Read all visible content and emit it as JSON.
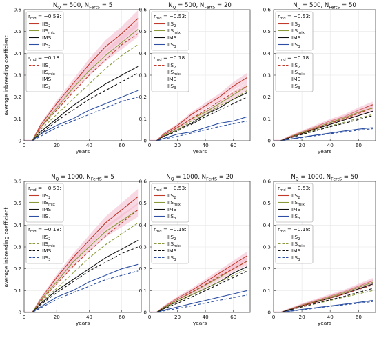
{
  "figure": {
    "ylabel": "average inbreeding coefficient"
  },
  "chart_data": [
    {
      "type": "line",
      "title": "N_Q = 500,   N_FertS = 5",
      "xlabel": "years",
      "xlim": [
        0,
        72
      ],
      "ylim": [
        0,
        0.6
      ],
      "xticks": [
        0,
        20,
        40,
        60
      ],
      "yticks": [
        0,
        0.1,
        0.2,
        0.3,
        0.4,
        0.5,
        0.6
      ],
      "grid": true,
      "legends": [
        {
          "header": "r_md = −0.53:",
          "entries": [
            "IIS_2",
            "IIS_mix",
            "IMS",
            "IIS_3"
          ],
          "style": "solid",
          "placement": "upper-left"
        },
        {
          "header": "r_md = −0.18:",
          "entries": [
            "IIS_2",
            "IIS_mix",
            "IMS",
            "IIS_3"
          ],
          "style": "dashed",
          "placement": "middle-left"
        }
      ],
      "x": [
        0,
        5,
        10,
        20,
        30,
        40,
        50,
        60,
        70
      ],
      "series": [
        {
          "name": "IIS_2",
          "group": "r_md = −0.53",
          "values": [
            0,
            0,
            0.07,
            0.17,
            0.26,
            0.35,
            0.43,
            0.49,
            0.56
          ]
        },
        {
          "name": "IIS_mix",
          "group": "r_md = −0.53",
          "values": [
            0,
            0,
            0.06,
            0.15,
            0.24,
            0.32,
            0.39,
            0.45,
            0.51
          ]
        },
        {
          "name": "IMS",
          "group": "r_md = −0.53",
          "values": [
            0,
            0,
            0.04,
            0.1,
            0.16,
            0.21,
            0.26,
            0.3,
            0.34
          ]
        },
        {
          "name": "IIS_3",
          "group": "r_md = −0.53",
          "values": [
            0,
            0,
            0.03,
            0.07,
            0.1,
            0.14,
            0.17,
            0.2,
            0.23
          ]
        },
        {
          "name": "IIS_2",
          "group": "r_md = −0.18",
          "values": [
            0,
            0,
            0.06,
            0.14,
            0.22,
            0.3,
            0.37,
            0.44,
            0.49
          ]
        },
        {
          "name": "IIS_mix",
          "group": "r_md = −0.18",
          "values": [
            0,
            0,
            0.05,
            0.12,
            0.19,
            0.26,
            0.33,
            0.39,
            0.44
          ]
        },
        {
          "name": "IMS",
          "group": "r_md = −0.18",
          "values": [
            0,
            0,
            0.03,
            0.09,
            0.14,
            0.19,
            0.23,
            0.27,
            0.31
          ]
        },
        {
          "name": "IIS_3",
          "group": "r_md = −0.18",
          "values": [
            0,
            0,
            0.02,
            0.06,
            0.09,
            0.12,
            0.15,
            0.18,
            0.2
          ]
        }
      ]
    },
    {
      "type": "line",
      "title": "N_Q = 500,   N_FertS = 20",
      "xlabel": "years",
      "xlim": [
        0,
        72
      ],
      "ylim": [
        0,
        0.6
      ],
      "xticks": [
        0,
        20,
        40,
        60
      ],
      "yticks": [
        0,
        0.1,
        0.2,
        0.3,
        0.4,
        0.5,
        0.6
      ],
      "grid": true,
      "legends": [
        {
          "header": "r_md = −0.53:",
          "entries": [
            "IIS_2",
            "IIS_mix",
            "IMS",
            "IIS_3"
          ],
          "style": "solid",
          "placement": "upper-left"
        },
        {
          "header": "r_md = −0.18:",
          "entries": [
            "IIS_2",
            "IIS_mix",
            "IMS",
            "IIS_3"
          ],
          "style": "dashed",
          "placement": "middle-left"
        }
      ],
      "x": [
        0,
        5,
        10,
        20,
        30,
        40,
        50,
        60,
        70
      ],
      "series": [
        {
          "name": "IIS_2",
          "group": "r_md = −0.53",
          "values": [
            0,
            0,
            0.03,
            0.07,
            0.12,
            0.16,
            0.2,
            0.25,
            0.29
          ]
        },
        {
          "name": "IIS_mix",
          "group": "r_md = −0.53",
          "values": [
            0,
            0,
            0.025,
            0.06,
            0.1,
            0.13,
            0.17,
            0.21,
            0.25
          ]
        },
        {
          "name": "IMS",
          "group": "r_md = −0.53",
          "values": [
            0,
            0,
            0.02,
            0.05,
            0.08,
            0.12,
            0.15,
            0.19,
            0.22
          ]
        },
        {
          "name": "IIS_3",
          "group": "r_md = −0.53",
          "values": [
            0,
            0,
            0.01,
            0.03,
            0.04,
            0.06,
            0.08,
            0.09,
            0.11
          ]
        },
        {
          "name": "IIS_2",
          "group": "r_md = −0.18",
          "values": [
            0,
            0,
            0.025,
            0.06,
            0.1,
            0.14,
            0.18,
            0.22,
            0.25
          ]
        },
        {
          "name": "IIS_mix",
          "group": "r_md = −0.18",
          "values": [
            0,
            0,
            0.02,
            0.05,
            0.09,
            0.12,
            0.16,
            0.19,
            0.23
          ]
        },
        {
          "name": "IMS",
          "group": "r_md = −0.18",
          "values": [
            0,
            0,
            0.018,
            0.045,
            0.075,
            0.11,
            0.14,
            0.17,
            0.2
          ]
        },
        {
          "name": "IIS_3",
          "group": "r_md = −0.18",
          "values": [
            0,
            0,
            0.008,
            0.02,
            0.035,
            0.05,
            0.065,
            0.078,
            0.09
          ]
        }
      ]
    },
    {
      "type": "line",
      "title": "N_Q = 500,   N_FertS = 50",
      "xlabel": "years",
      "xlim": [
        0,
        72
      ],
      "ylim": [
        0,
        0.6
      ],
      "xticks": [
        0,
        20,
        40,
        60
      ],
      "yticks": [
        0,
        0.1,
        0.2,
        0.3,
        0.4,
        0.5,
        0.6
      ],
      "grid": true,
      "legends": [
        {
          "header": "r_md = −0.53:",
          "entries": [
            "IIS_2",
            "IIS_mix",
            "IMS",
            "IIS_3"
          ],
          "style": "solid",
          "placement": "upper-left"
        },
        {
          "header": "r_md = −0.18:",
          "entries": [
            "IIS_2",
            "IIS_mix",
            "IMS",
            "IIS_3"
          ],
          "style": "dashed",
          "placement": "middle-left"
        }
      ],
      "x": [
        0,
        5,
        10,
        20,
        30,
        40,
        50,
        60,
        70
      ],
      "series": [
        {
          "name": "IIS_2",
          "group": "r_md = −0.53",
          "values": [
            0,
            0,
            0.015,
            0.04,
            0.065,
            0.09,
            0.11,
            0.14,
            0.165
          ]
        },
        {
          "name": "IIS_mix",
          "group": "r_md = −0.53",
          "values": [
            0,
            0,
            0.014,
            0.037,
            0.06,
            0.083,
            0.105,
            0.13,
            0.15
          ]
        },
        {
          "name": "IMS",
          "group": "r_md = −0.53",
          "values": [
            0,
            0,
            0.012,
            0.033,
            0.055,
            0.075,
            0.095,
            0.115,
            0.135
          ]
        },
        {
          "name": "IIS_3",
          "group": "r_md = −0.53",
          "values": [
            0,
            0,
            0.006,
            0.016,
            0.026,
            0.035,
            0.045,
            0.053,
            0.06
          ]
        },
        {
          "name": "IIS_2",
          "group": "r_md = −0.18",
          "values": [
            0,
            0,
            0.013,
            0.035,
            0.058,
            0.08,
            0.1,
            0.125,
            0.15
          ]
        },
        {
          "name": "IIS_mix",
          "group": "r_md = −0.18",
          "values": [
            0,
            0,
            0.011,
            0.03,
            0.05,
            0.068,
            0.085,
            0.103,
            0.12
          ]
        },
        {
          "name": "IMS",
          "group": "r_md = −0.18",
          "values": [
            0,
            0,
            0.01,
            0.028,
            0.046,
            0.064,
            0.08,
            0.097,
            0.115
          ]
        },
        {
          "name": "IIS_3",
          "group": "r_md = −0.18",
          "values": [
            0,
            0,
            0.005,
            0.014,
            0.023,
            0.032,
            0.04,
            0.048,
            0.055
          ]
        }
      ]
    },
    {
      "type": "line",
      "title": "N_Q = 1000,   N_FertS = 5",
      "xlabel": "years",
      "xlim": [
        0,
        72
      ],
      "ylim": [
        0,
        0.6
      ],
      "xticks": [
        0,
        20,
        40,
        60
      ],
      "yticks": [
        0,
        0.1,
        0.2,
        0.3,
        0.4,
        0.5,
        0.6
      ],
      "grid": true,
      "legends": [
        {
          "header": "r_md = −0.53:",
          "entries": [
            "IIS_2",
            "IIS_mix",
            "IMS",
            "IIS_3"
          ],
          "style": "solid",
          "placement": "upper-left"
        },
        {
          "header": "r_md = −0.18:",
          "entries": [
            "IIS_2",
            "IIS_mix",
            "IMS",
            "IIS_3"
          ],
          "style": "dashed",
          "placement": "middle-left"
        }
      ],
      "x": [
        0,
        5,
        10,
        20,
        30,
        40,
        50,
        60,
        70
      ],
      "series": [
        {
          "name": "IIS_2",
          "group": "r_md = −0.53",
          "values": [
            0,
            0,
            0.06,
            0.16,
            0.25,
            0.33,
            0.41,
            0.47,
            0.53
          ]
        },
        {
          "name": "IIS_mix",
          "group": "r_md = −0.53",
          "values": [
            0,
            0,
            0.055,
            0.14,
            0.23,
            0.3,
            0.37,
            0.42,
            0.47
          ]
        },
        {
          "name": "IMS",
          "group": "r_md = −0.53",
          "values": [
            0,
            0,
            0.04,
            0.1,
            0.15,
            0.2,
            0.25,
            0.29,
            0.33
          ]
        },
        {
          "name": "IIS_3",
          "group": "r_md = −0.53",
          "values": [
            0,
            0,
            0.025,
            0.07,
            0.1,
            0.14,
            0.17,
            0.2,
            0.22
          ]
        },
        {
          "name": "IIS_2",
          "group": "r_md = −0.18",
          "values": [
            0,
            0,
            0.05,
            0.13,
            0.21,
            0.28,
            0.35,
            0.41,
            0.47
          ]
        },
        {
          "name": "IIS_mix",
          "group": "r_md = −0.18",
          "values": [
            0,
            0,
            0.045,
            0.11,
            0.18,
            0.25,
            0.31,
            0.36,
            0.41
          ]
        },
        {
          "name": "IMS",
          "group": "r_md = −0.18",
          "values": [
            0,
            0,
            0.035,
            0.09,
            0.14,
            0.19,
            0.23,
            0.27,
            0.3
          ]
        },
        {
          "name": "IIS_3",
          "group": "r_md = −0.18",
          "values": [
            0,
            0,
            0.02,
            0.06,
            0.09,
            0.12,
            0.15,
            0.17,
            0.19
          ]
        }
      ]
    },
    {
      "type": "line",
      "title": "N_Q = 1000,   N_FertS = 20",
      "xlabel": "years",
      "xlim": [
        0,
        72
      ],
      "ylim": [
        0,
        0.6
      ],
      "xticks": [
        0,
        20,
        40,
        60
      ],
      "yticks": [
        0,
        0.1,
        0.2,
        0.3,
        0.4,
        0.5,
        0.6
      ],
      "grid": true,
      "legends": [
        {
          "header": "r_md = −0.53:",
          "entries": [
            "IIS_2",
            "IIS_mix",
            "IMS",
            "IIS_3"
          ],
          "style": "solid",
          "placement": "upper-left"
        },
        {
          "header": "r_md = −0.18:",
          "entries": [
            "IIS_2",
            "IIS_mix",
            "IMS",
            "IIS_3"
          ],
          "style": "dashed",
          "placement": "middle-left"
        }
      ],
      "x": [
        0,
        5,
        10,
        20,
        30,
        40,
        50,
        60,
        70
      ],
      "series": [
        {
          "name": "IIS_2",
          "group": "r_md = −0.53",
          "values": [
            0,
            0,
            0.025,
            0.065,
            0.1,
            0.14,
            0.18,
            0.22,
            0.26
          ]
        },
        {
          "name": "IIS_mix",
          "group": "r_md = −0.53",
          "values": [
            0,
            0,
            0.022,
            0.058,
            0.09,
            0.125,
            0.16,
            0.2,
            0.235
          ]
        },
        {
          "name": "IMS",
          "group": "r_md = −0.53",
          "values": [
            0,
            0,
            0.02,
            0.05,
            0.08,
            0.11,
            0.14,
            0.18,
            0.21
          ]
        },
        {
          "name": "IIS_3",
          "group": "r_md = −0.53",
          "values": [
            0,
            0,
            0.01,
            0.025,
            0.04,
            0.055,
            0.07,
            0.085,
            0.1
          ]
        },
        {
          "name": "IIS_2",
          "group": "r_md = −0.18",
          "values": [
            0,
            0,
            0.022,
            0.058,
            0.092,
            0.128,
            0.165,
            0.2,
            0.235
          ]
        },
        {
          "name": "IIS_mix",
          "group": "r_md = −0.18",
          "values": [
            0,
            0,
            0.02,
            0.05,
            0.08,
            0.11,
            0.14,
            0.17,
            0.2
          ]
        },
        {
          "name": "IMS",
          "group": "r_md = −0.18",
          "values": [
            0,
            0,
            0.016,
            0.042,
            0.07,
            0.1,
            0.13,
            0.16,
            0.19
          ]
        },
        {
          "name": "IIS_3",
          "group": "r_md = −0.18",
          "values": [
            0,
            0,
            0.007,
            0.018,
            0.03,
            0.043,
            0.056,
            0.068,
            0.08
          ]
        }
      ]
    },
    {
      "type": "line",
      "title": "N_Q = 1000,   N_FertS = 50",
      "xlabel": "years",
      "xlim": [
        0,
        72
      ],
      "ylim": [
        0,
        0.6
      ],
      "xticks": [
        0,
        20,
        40,
        60
      ],
      "yticks": [
        0,
        0.1,
        0.2,
        0.3,
        0.4,
        0.5,
        0.6
      ],
      "grid": true,
      "legends": [
        {
          "header": "r_md = −0.53:",
          "entries": [
            "IIS_2",
            "IIS_mix",
            "IMS",
            "IIS_3"
          ],
          "style": "solid",
          "placement": "upper-left"
        },
        {
          "header": "r_md = −0.18:",
          "entries": [
            "IIS_2",
            "IIS_mix",
            "IMS",
            "IIS_3"
          ],
          "style": "dashed",
          "placement": "middle-left"
        }
      ],
      "x": [
        0,
        5,
        10,
        20,
        30,
        40,
        50,
        60,
        70
      ],
      "series": [
        {
          "name": "IIS_2",
          "group": "r_md = −0.53",
          "values": [
            0,
            0,
            0.012,
            0.035,
            0.055,
            0.075,
            0.095,
            0.12,
            0.145
          ]
        },
        {
          "name": "IIS_mix",
          "group": "r_md = −0.53",
          "values": [
            0,
            0,
            0.011,
            0.032,
            0.051,
            0.07,
            0.09,
            0.115,
            0.138
          ]
        },
        {
          "name": "IMS",
          "group": "r_md = −0.53",
          "values": [
            0,
            0,
            0.01,
            0.03,
            0.048,
            0.066,
            0.085,
            0.108,
            0.13
          ]
        },
        {
          "name": "IIS_3",
          "group": "r_md = −0.53",
          "values": [
            0,
            0,
            0.005,
            0.014,
            0.022,
            0.03,
            0.038,
            0.046,
            0.055
          ]
        },
        {
          "name": "IIS_2",
          "group": "r_md = −0.18",
          "values": [
            0,
            0,
            0.01,
            0.03,
            0.048,
            0.066,
            0.085,
            0.105,
            0.125
          ]
        },
        {
          "name": "IIS_mix",
          "group": "r_md = −0.18",
          "values": [
            0,
            0,
            0.009,
            0.025,
            0.04,
            0.055,
            0.07,
            0.085,
            0.1
          ]
        },
        {
          "name": "IMS",
          "group": "r_md = −0.18",
          "values": [
            0,
            0,
            0.009,
            0.026,
            0.042,
            0.058,
            0.074,
            0.092,
            0.11
          ]
        },
        {
          "name": "IIS_3",
          "group": "r_md = −0.18",
          "values": [
            0,
            0,
            0.004,
            0.012,
            0.02,
            0.028,
            0.035,
            0.042,
            0.05
          ]
        }
      ]
    }
  ],
  "style": {
    "series_colors": {
      "IIS_2": "#c0392b",
      "IIS_mix": "#8a9a3b",
      "IMS": "#111111",
      "IIS_3": "#2c4fa3"
    },
    "band_color": "#f2b8cc",
    "grid_color": "#e6e6e6",
    "frame_color": "#444444"
  }
}
